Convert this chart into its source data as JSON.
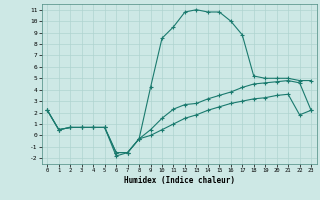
{
  "xlabel": "Humidex (Indice chaleur)",
  "x_ticks": [
    0,
    1,
    2,
    3,
    4,
    5,
    6,
    7,
    8,
    9,
    10,
    11,
    12,
    13,
    14,
    15,
    16,
    17,
    18,
    19,
    20,
    21,
    22,
    23
  ],
  "ylim": [
    -2.5,
    11.5
  ],
  "xlim": [
    -0.5,
    23.5
  ],
  "yticks": [
    -2,
    -1,
    0,
    1,
    2,
    3,
    4,
    5,
    6,
    7,
    8,
    9,
    10,
    11
  ],
  "background_color": "#cde8e5",
  "grid_color": "#b0d4d0",
  "line_color": "#1a7a6e",
  "line1_x": [
    0,
    1,
    2,
    3,
    4,
    5,
    6,
    7,
    8,
    9,
    10,
    11,
    12,
    13,
    14,
    15,
    16,
    17,
    18,
    19,
    20,
    21,
    22,
    23
  ],
  "line1_y": [
    2.2,
    0.5,
    0.7,
    0.7,
    0.7,
    0.7,
    -1.5,
    -1.5,
    -0.3,
    4.2,
    8.5,
    9.5,
    10.8,
    11.0,
    10.8,
    10.8,
    10.0,
    8.8,
    5.2,
    5.0,
    5.0,
    5.0,
    4.8,
    4.8
  ],
  "line2_x": [
    0,
    1,
    2,
    3,
    4,
    5,
    6,
    7,
    8,
    9,
    10,
    11,
    12,
    13,
    14,
    15,
    16,
    17,
    18,
    19,
    20,
    21,
    22,
    23
  ],
  "line2_y": [
    2.2,
    0.5,
    0.7,
    0.7,
    0.7,
    0.7,
    -1.5,
    -1.5,
    -0.3,
    0.5,
    1.5,
    2.3,
    2.7,
    2.8,
    3.2,
    3.5,
    3.8,
    4.2,
    4.5,
    4.6,
    4.7,
    4.8,
    4.6,
    2.2
  ],
  "line3_x": [
    0,
    1,
    2,
    3,
    4,
    5,
    6,
    7,
    8,
    9,
    10,
    11,
    12,
    13,
    14,
    15,
    16,
    17,
    18,
    19,
    20,
    21,
    22,
    23
  ],
  "line3_y": [
    2.2,
    0.5,
    0.7,
    0.7,
    0.7,
    0.7,
    -1.8,
    -1.5,
    -0.3,
    0.0,
    0.5,
    1.0,
    1.5,
    1.8,
    2.2,
    2.5,
    2.8,
    3.0,
    3.2,
    3.3,
    3.5,
    3.6,
    1.8,
    2.2
  ]
}
